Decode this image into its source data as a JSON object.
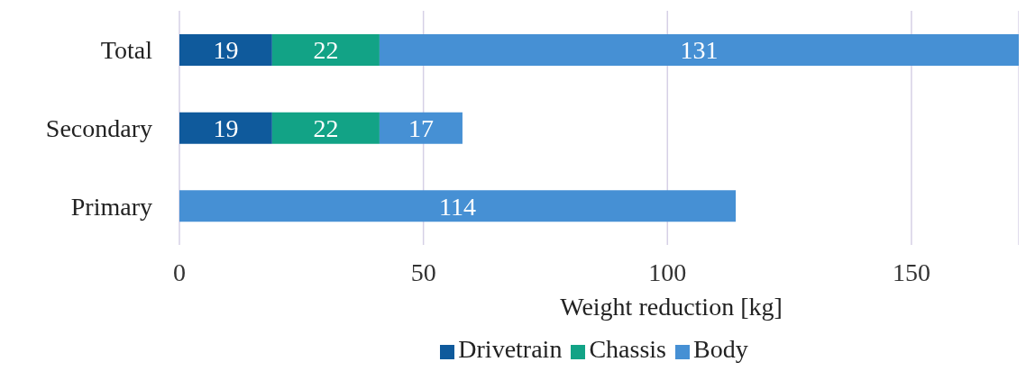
{
  "chart_data": {
    "type": "bar",
    "orientation": "horizontal",
    "stacked": true,
    "categories": [
      "Total",
      "Secondary",
      "Primary"
    ],
    "series": [
      {
        "name": "Drivetrain",
        "color": "#0f5a9c",
        "values": [
          19,
          19,
          null
        ]
      },
      {
        "name": "Chassis",
        "color": "#12a386",
        "values": [
          22,
          22,
          null
        ]
      },
      {
        "name": "Body",
        "color": "#4690d4",
        "values": [
          131,
          17,
          114
        ]
      }
    ],
    "xlim": [
      0,
      172
    ],
    "xticks": [
      0,
      50,
      100,
      150
    ],
    "xlabel": "Weight reduction [kg]",
    "grid": "x",
    "legend": "bottom",
    "data_labels": true
  }
}
